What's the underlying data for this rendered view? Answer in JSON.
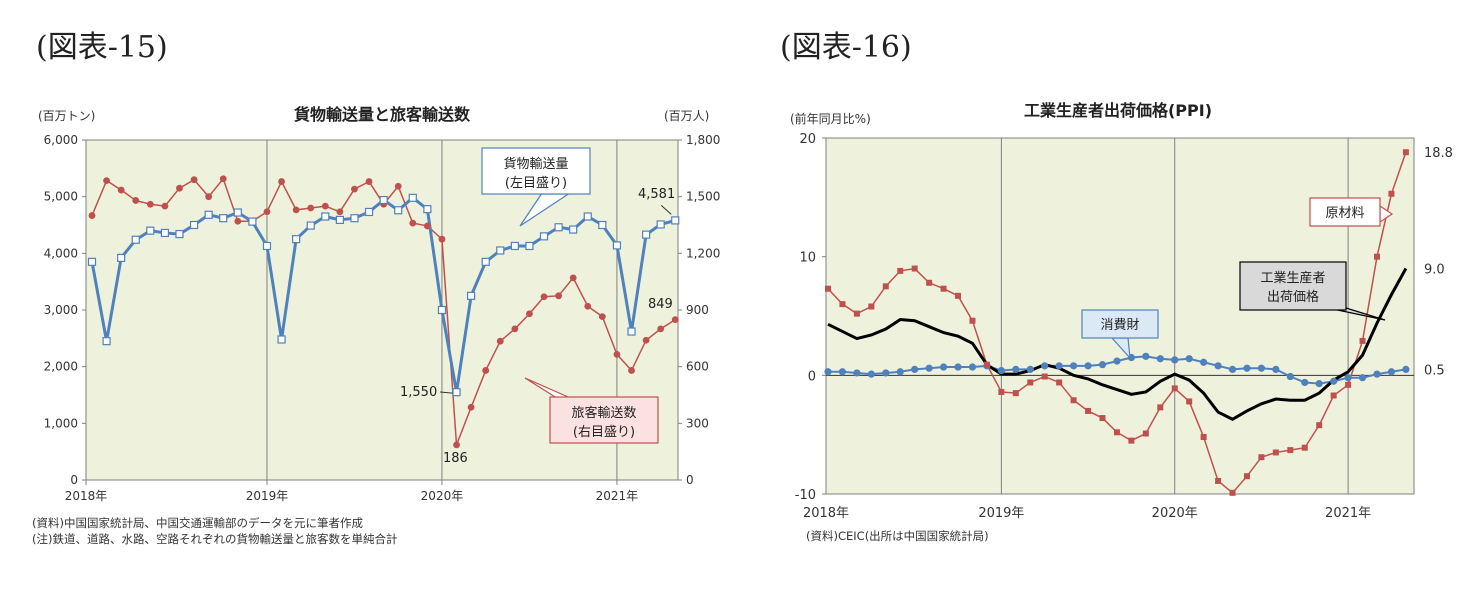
{
  "figure15": {
    "label": "(図表-15)",
    "notes": [
      "(資料)中国国家統計局、中国交通運輸部のデータを元に筆者作成",
      "(注)鉄道、道路、水路、空路それぞれの貨物輸送量と旅客数を単純合計"
    ]
  },
  "figure16": {
    "label": "(図表-16)",
    "notes": [
      "(資料)CEIC(出所は中国国家統計局)"
    ]
  },
  "chart_data": [
    {
      "type": "line",
      "title": "貨物輸送量と旅客輸送数",
      "ylabel_left": "(百万トン)",
      "ylabel_right": "(百万人)",
      "ylim_left": [
        0,
        6000
      ],
      "ylim_right": [
        0,
        1800
      ],
      "yticks_left": [
        "0",
        "1,000",
        "2,000",
        "3,000",
        "4,000",
        "5,000",
        "6,000"
      ],
      "yticks_right": [
        "0",
        "300",
        "600",
        "900",
        "1,200",
        "1,500",
        "1,800"
      ],
      "x_tick_labels": [
        "2018年",
        "2019年",
        "2020年",
        "2021年"
      ],
      "grid": "vertical-at-year",
      "series": [
        {
          "name": "貨物輸送量",
          "axis": "left",
          "color": "#4f81bd",
          "callout": [
            "貨物輸送量",
            "(左目盛り)"
          ],
          "values": [
            3850,
            2450,
            3920,
            4240,
            4400,
            4360,
            4340,
            4500,
            4680,
            4620,
            4720,
            4560,
            4130,
            2480,
            4250,
            4490,
            4650,
            4590,
            4620,
            4730,
            4940,
            4760,
            4980,
            4780,
            3000,
            1550,
            3250,
            3850,
            4050,
            4130,
            4130,
            4300,
            4460,
            4420,
            4650,
            4500,
            4140,
            2620,
            4330,
            4510,
            4581
          ]
        },
        {
          "name": "旅客輸送数",
          "axis": "right",
          "color": "#c0504d",
          "callout": [
            "旅客輸送数",
            "(右目盛り)"
          ],
          "values": [
            1400,
            1585,
            1535,
            1480,
            1460,
            1450,
            1545,
            1590,
            1500,
            1595,
            1370,
            1370,
            1420,
            1580,
            1430,
            1440,
            1450,
            1420,
            1540,
            1580,
            1460,
            1555,
            1360,
            1345,
            1275,
            186,
            385,
            580,
            735,
            800,
            880,
            970,
            975,
            1070,
            920,
            865,
            665,
            580,
            740,
            800,
            849
          ]
        }
      ],
      "annotations": [
        "4,581",
        "849",
        "1,550",
        "186"
      ]
    },
    {
      "type": "line",
      "title": "工業生産者出荷価格(PPI)",
      "ylabel": "(前年同月比%)",
      "ylim": [
        -10,
        20
      ],
      "yticks": [
        "-10",
        "0",
        "10",
        "20"
      ],
      "x_tick_labels": [
        "2018年",
        "2019年",
        "2020年",
        "2021年"
      ],
      "grid": "vertical-at-year",
      "series": [
        {
          "name": "原材料",
          "color": "#c0504d",
          "callout": [
            "原材料"
          ],
          "values": [
            7.3,
            6.0,
            5.2,
            5.8,
            7.5,
            8.8,
            9.0,
            7.8,
            7.3,
            6.7,
            4.6,
            0.9,
            -1.4,
            -1.5,
            -0.6,
            -0.1,
            -0.6,
            -2.1,
            -3.0,
            -3.6,
            -4.8,
            -5.5,
            -4.9,
            -2.7,
            -1.1,
            -2.2,
            -5.2,
            -8.9,
            -9.9,
            -8.5,
            -6.9,
            -6.5,
            -6.3,
            -6.1,
            -4.2,
            -1.7,
            -0.8,
            2.9,
            10.0,
            15.3,
            18.8
          ]
        },
        {
          "name": "工業生産者出荷価格",
          "color": "#000000",
          "callout": [
            "工業生産者",
            "出荷価格"
          ],
          "values": [
            4.3,
            3.7,
            3.1,
            3.4,
            3.9,
            4.7,
            4.6,
            4.1,
            3.6,
            3.3,
            2.7,
            0.9,
            0.1,
            0.1,
            0.4,
            0.9,
            0.6,
            0.0,
            -0.3,
            -0.8,
            -1.2,
            -1.6,
            -1.4,
            -0.5,
            0.1,
            -0.4,
            -1.5,
            -3.1,
            -3.7,
            -3.0,
            -2.4,
            -2.0,
            -2.1,
            -2.1,
            -1.5,
            -0.4,
            0.3,
            1.7,
            4.4,
            6.8,
            9.0
          ]
        },
        {
          "name": "消費財",
          "color": "#4f81bd",
          "callout": [
            "消費財"
          ],
          "values": [
            0.3,
            0.3,
            0.2,
            0.1,
            0.2,
            0.3,
            0.5,
            0.6,
            0.7,
            0.7,
            0.7,
            0.8,
            0.4,
            0.5,
            0.5,
            0.8,
            0.8,
            0.8,
            0.8,
            0.9,
            1.2,
            1.5,
            1.6,
            1.4,
            1.3,
            1.4,
            1.1,
            0.8,
            0.5,
            0.6,
            0.6,
            0.5,
            -0.1,
            -0.6,
            -0.7,
            -0.5,
            -0.2,
            -0.2,
            0.1,
            0.3,
            0.5
          ]
        }
      ],
      "end_labels": [
        "18.8",
        "9.0",
        "0.5"
      ]
    }
  ]
}
